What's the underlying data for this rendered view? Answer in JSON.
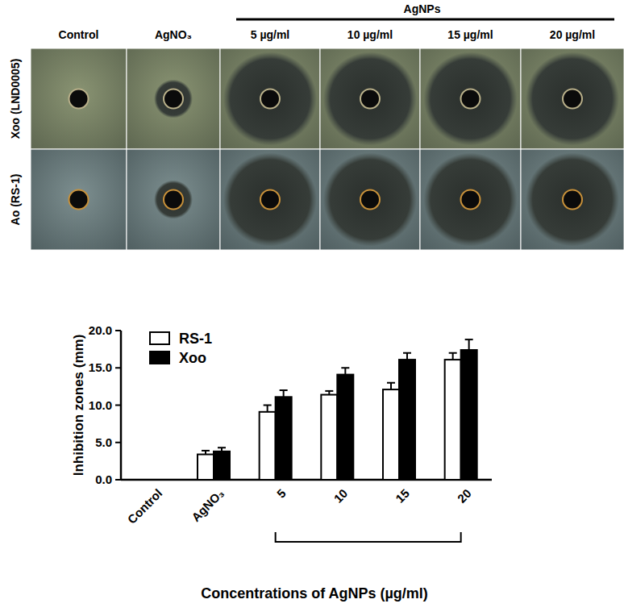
{
  "photo_grid": {
    "group_label": "AgNPs",
    "columns": [
      "Control",
      "AgNO₃",
      "5 µg/ml",
      "10 µg/ml",
      "15 µg/ml",
      "20 µg/ml"
    ],
    "rows": [
      "Xoo (LND0005)",
      "Ao (RS-1)"
    ]
  },
  "chart_data": {
    "type": "bar",
    "categories": [
      "Control",
      "AgNO₃",
      "5",
      "10",
      "15",
      "20"
    ],
    "series": [
      {
        "name": "RS-1",
        "color": "#ffffff",
        "values": [
          0,
          3.4,
          9.1,
          11.4,
          12.1,
          16.1
        ],
        "errors": [
          0,
          0.5,
          0.9,
          0.5,
          0.9,
          0.9
        ]
      },
      {
        "name": "Xoo",
        "color": "#000000",
        "values": [
          0,
          3.8,
          11.1,
          14.1,
          16.1,
          17.4
        ],
        "errors": [
          0,
          0.5,
          0.9,
          0.9,
          0.9,
          1.4
        ]
      }
    ],
    "y_label": "Inhibition zones (mm)",
    "x_label": "Concentrations of AgNPs (µg/ml)",
    "ylim": [
      0,
      20
    ],
    "yticks": [
      {
        "value": 0,
        "label": "0.0"
      },
      {
        "value": 5,
        "label": "5.0"
      },
      {
        "value": 10,
        "label": "10.0"
      },
      {
        "value": 15,
        "label": "15.0"
      },
      {
        "value": 20,
        "label": "20.0"
      }
    ],
    "legend": "top-left",
    "grid": false
  }
}
